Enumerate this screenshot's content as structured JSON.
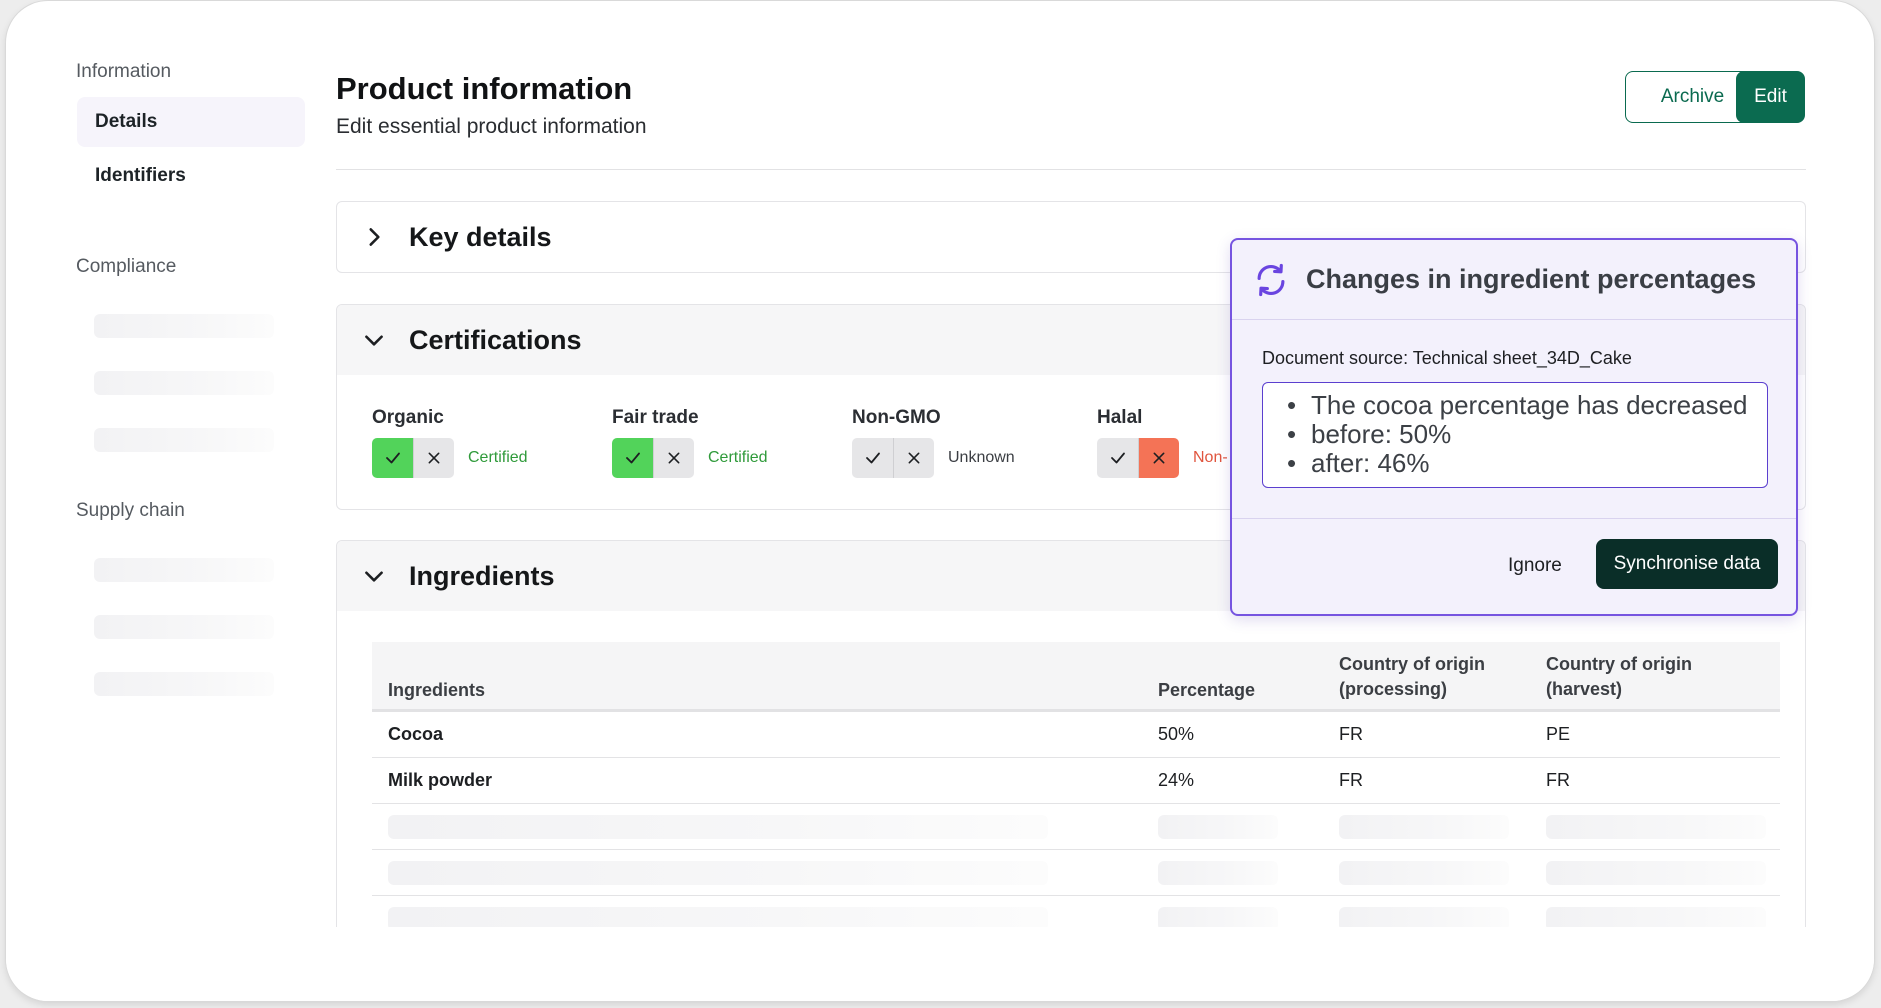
{
  "sidebar": {
    "sections": [
      {
        "title": "Information",
        "items": [
          "Details",
          "Identifiers"
        ]
      },
      {
        "title": "Compliance"
      },
      {
        "title": "Supply chain"
      }
    ]
  },
  "header": {
    "title": "Product information",
    "subtitle": "Edit essential product information",
    "archive_label": "Archive",
    "edit_label": "Edit"
  },
  "cards": {
    "key_details": "Key details",
    "certifications": "Certifications",
    "ingredients": "Ingredients"
  },
  "certifications": [
    {
      "label": "Organic",
      "state": "yes",
      "status": "Certified",
      "status_color": "#2f9a3a"
    },
    {
      "label": "Fair trade",
      "state": "yes",
      "status": "Certified",
      "status_color": "#2f9a3a"
    },
    {
      "label": "Non-GMO",
      "state": "unknown",
      "status": "Unknown",
      "status_color": "#3b3e43"
    },
    {
      "label": "Halal",
      "state": "no",
      "status": "Non-",
      "status_color": "#e0553e"
    }
  ],
  "ingredients_table": {
    "headers": [
      "Ingredients",
      "Percentage",
      "Country of origin (processing)",
      "Country of origin (harvest)"
    ],
    "header_lines": {
      "processing": [
        "Country of origin",
        "(processing)"
      ],
      "harvest": [
        "Country of origin",
        "(harvest)"
      ]
    },
    "rows": [
      {
        "name": "Cocoa",
        "percentage": "50%",
        "processing": "FR",
        "harvest": "PE"
      },
      {
        "name": "Milk powder",
        "percentage": "24%",
        "processing": "FR",
        "harvest": "FR"
      }
    ]
  },
  "popup": {
    "title": "Changes in ingredient percentages",
    "source": "Document source: Technical sheet_34D_Cake",
    "bullets": [
      "The cocoa percentage has decreased",
      "before: 50%",
      "after: 46%"
    ],
    "ignore_label": "Ignore",
    "sync_label": "Synchronise data",
    "accent": "#7654e0"
  },
  "colors": {
    "brand": "#0b6b50",
    "check_on": "#52d35a",
    "cross_on": "#f47356"
  },
  "icons": {
    "sync": "sync-icon",
    "check": "check-icon",
    "cross": "close-icon",
    "chevron_right": "chevron-right-icon",
    "chevron_down": "chevron-down-icon"
  }
}
